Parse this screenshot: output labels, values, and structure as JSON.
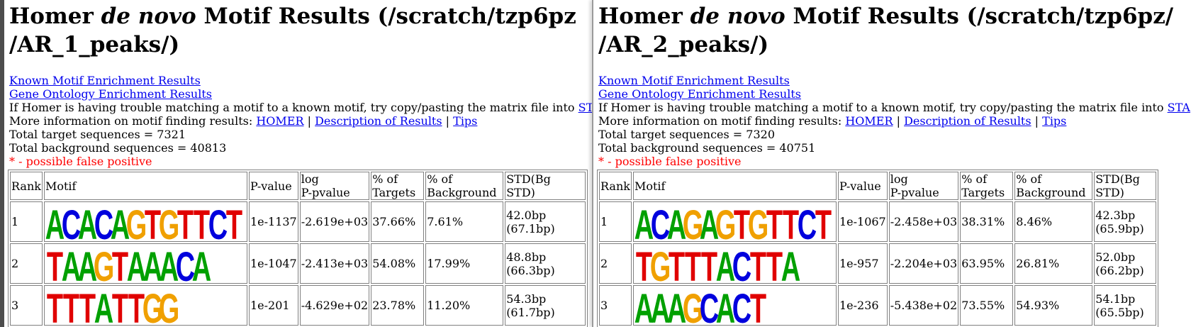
{
  "panes": [
    {
      "title_pre": "Homer ",
      "title_em": "de novo",
      "title_post": " Motif Results (/scratch/tzp6pz",
      "title_line2": "/AR_1_peaks/)",
      "links": {
        "known": "Known Motif Enrichment Results",
        "go": "Gene Ontology Enrichment Results"
      },
      "trouble_text": "If Homer is having trouble matching a motif to a known motif, try copy/pasting the matrix file into ",
      "trouble_link": "ST",
      "info_prefix": "More information on motif finding results: ",
      "info_homer": "HOMER",
      "sep": " | ",
      "info_desc": "Description of Results",
      "info_tips": "Tips",
      "total_target": "Total target sequences = 7321",
      "total_bg": "Total background sequences = 40813",
      "false_pos": "* - possible false positive",
      "headers": {
        "rank": "Rank",
        "motif": "Motif",
        "pval": "P-value",
        "log1": "log",
        "log2": "P-pvalue",
        "tgt1": "% of",
        "tgt2": "Targets",
        "bg1": "% of",
        "bg2": "Background",
        "std1": "STD(Bg",
        "std2": "STD)"
      },
      "rows": [
        {
          "rank": "1",
          "motif": "ACACAGTGTTCT",
          "pval": "1e-1137",
          "logp": "-2.619e+03",
          "targets": "37.66%",
          "background": "7.61%",
          "std1": "42.0bp",
          "std2": "(67.1bp)"
        },
        {
          "rank": "2",
          "motif": "TAAGTAAACA",
          "pval": "1e-1047",
          "logp": "-2.413e+03",
          "targets": "54.08%",
          "background": "17.99%",
          "std1": "48.8bp",
          "std2": "(66.3bp)"
        },
        {
          "rank": "3",
          "motif": "TTTATTGG",
          "pval": "1e-201",
          "logp": "-4.629e+02",
          "targets": "23.78%",
          "background": "11.20%",
          "std1": "54.3bp",
          "std2": "(61.7bp)"
        }
      ]
    },
    {
      "title_pre": "Homer ",
      "title_em": "de novo",
      "title_post": " Motif Results (/scratch/tzp6pz/",
      "title_line2": "/AR_2_peaks/)",
      "links": {
        "known": "Known Motif Enrichment Results",
        "go": "Gene Ontology Enrichment Results"
      },
      "trouble_text": "If Homer is having trouble matching a motif to a known motif, try copy/pasting the matrix file into ",
      "trouble_link": "STA",
      "info_prefix": "More information on motif finding results: ",
      "info_homer": "HOMER",
      "sep": " | ",
      "info_desc": "Description of Results",
      "info_tips": "Tips",
      "total_target": "Total target sequences = 7320",
      "total_bg": "Total background sequences = 40751",
      "false_pos": "* - possible false positive",
      "headers": {
        "rank": "Rank",
        "motif": "Motif",
        "pval": "P-value",
        "log1": "log",
        "log2": "P-pvalue",
        "tgt1": "% of",
        "tgt2": "Targets",
        "bg1": "% of",
        "bg2": "Background",
        "std1": "STD(Bg",
        "std2": "STD)"
      },
      "rows": [
        {
          "rank": "1",
          "motif": "ACAGAGTGTTCT",
          "pval": "1e-1067",
          "logp": "-2.458e+03",
          "targets": "38.31%",
          "background": "8.46%",
          "std1": "42.3bp",
          "std2": "(65.9bp)"
        },
        {
          "rank": "2",
          "motif": "TGTTTACTTA",
          "pval": "1e-957",
          "logp": "-2.204e+03",
          "targets": "63.95%",
          "background": "26.81%",
          "std1": "52.0bp",
          "std2": "(66.2bp)"
        },
        {
          "rank": "3",
          "motif": "AAAGCACT",
          "pval": "1e-236",
          "logp": "-5.438e+02",
          "targets": "73.55%",
          "background": "54.93%",
          "std1": "54.1bp",
          "std2": "(65.5bp)"
        }
      ]
    }
  ],
  "nucleotide_colors": {
    "A": "#00a000",
    "C": "#0000dd",
    "G": "#f0a000",
    "T": "#e00000"
  }
}
